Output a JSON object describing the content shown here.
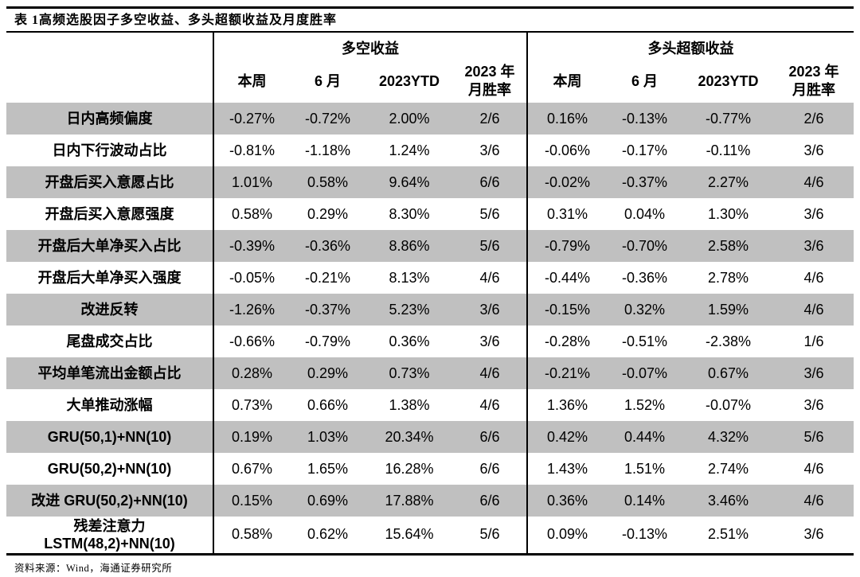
{
  "title": "表 1高频选股因子多空收益、多头超额收益及月度胜率",
  "header": {
    "group_left": "多空收益",
    "group_right": "多头超额收益",
    "cols": [
      "本周",
      "6 月",
      "2023YTD",
      "2023 年\n月胜率"
    ]
  },
  "table": {
    "rows": [
      {
        "label": "日内高频偏度",
        "values": [
          "-0.27%",
          "-0.72%",
          "2.00%",
          "2/6",
          "0.16%",
          "-0.13%",
          "-0.77%",
          "2/6"
        ]
      },
      {
        "label": "日内下行波动占比",
        "values": [
          "-0.81%",
          "-1.18%",
          "1.24%",
          "3/6",
          "-0.06%",
          "-0.17%",
          "-0.11%",
          "3/6"
        ]
      },
      {
        "label": "开盘后买入意愿占比",
        "values": [
          "1.01%",
          "0.58%",
          "9.64%",
          "6/6",
          "-0.02%",
          "-0.37%",
          "2.27%",
          "4/6"
        ]
      },
      {
        "label": "开盘后买入意愿强度",
        "values": [
          "0.58%",
          "0.29%",
          "8.30%",
          "5/6",
          "0.31%",
          "0.04%",
          "1.30%",
          "3/6"
        ]
      },
      {
        "label": "开盘后大单净买入占比",
        "values": [
          "-0.39%",
          "-0.36%",
          "8.86%",
          "5/6",
          "-0.79%",
          "-0.70%",
          "2.58%",
          "3/6"
        ]
      },
      {
        "label": "开盘后大单净买入强度",
        "values": [
          "-0.05%",
          "-0.21%",
          "8.13%",
          "4/6",
          "-0.44%",
          "-0.36%",
          "2.78%",
          "4/6"
        ]
      },
      {
        "label": "改进反转",
        "values": [
          "-1.26%",
          "-0.37%",
          "5.23%",
          "3/6",
          "-0.15%",
          "0.32%",
          "1.59%",
          "4/6"
        ]
      },
      {
        "label": "尾盘成交占比",
        "values": [
          "-0.66%",
          "-0.79%",
          "0.36%",
          "3/6",
          "-0.28%",
          "-0.51%",
          "-2.38%",
          "1/6"
        ]
      },
      {
        "label": "平均单笔流出金额占比",
        "values": [
          "0.28%",
          "0.29%",
          "0.73%",
          "4/6",
          "-0.21%",
          "-0.07%",
          "0.67%",
          "3/6"
        ]
      },
      {
        "label": "大单推动涨幅",
        "values": [
          "0.73%",
          "0.66%",
          "1.38%",
          "4/6",
          "1.36%",
          "1.52%",
          "-0.07%",
          "3/6"
        ]
      },
      {
        "label": "GRU(50,1)+NN(10)",
        "values": [
          "0.19%",
          "1.03%",
          "20.34%",
          "6/6",
          "0.42%",
          "0.44%",
          "4.32%",
          "5/6"
        ]
      },
      {
        "label": "GRU(50,2)+NN(10)",
        "values": [
          "0.67%",
          "1.65%",
          "16.28%",
          "6/6",
          "1.43%",
          "1.51%",
          "2.74%",
          "4/6"
        ]
      },
      {
        "label": "改进 GRU(50,2)+NN(10)",
        "values": [
          "0.15%",
          "0.69%",
          "17.88%",
          "6/6",
          "0.36%",
          "0.14%",
          "3.46%",
          "4/6"
        ]
      },
      {
        "label": "残差注意力\nLSTM(48,2)+NN(10)",
        "values": [
          "0.58%",
          "0.62%",
          "15.64%",
          "5/6",
          "0.09%",
          "-0.13%",
          "2.51%",
          "3/6"
        ]
      }
    ]
  },
  "footer": "资料来源：Wind，海通证券研究所",
  "colors": {
    "stripe": "#c0c0c0",
    "border": "#000000",
    "text": "#000000",
    "background": "#ffffff"
  }
}
